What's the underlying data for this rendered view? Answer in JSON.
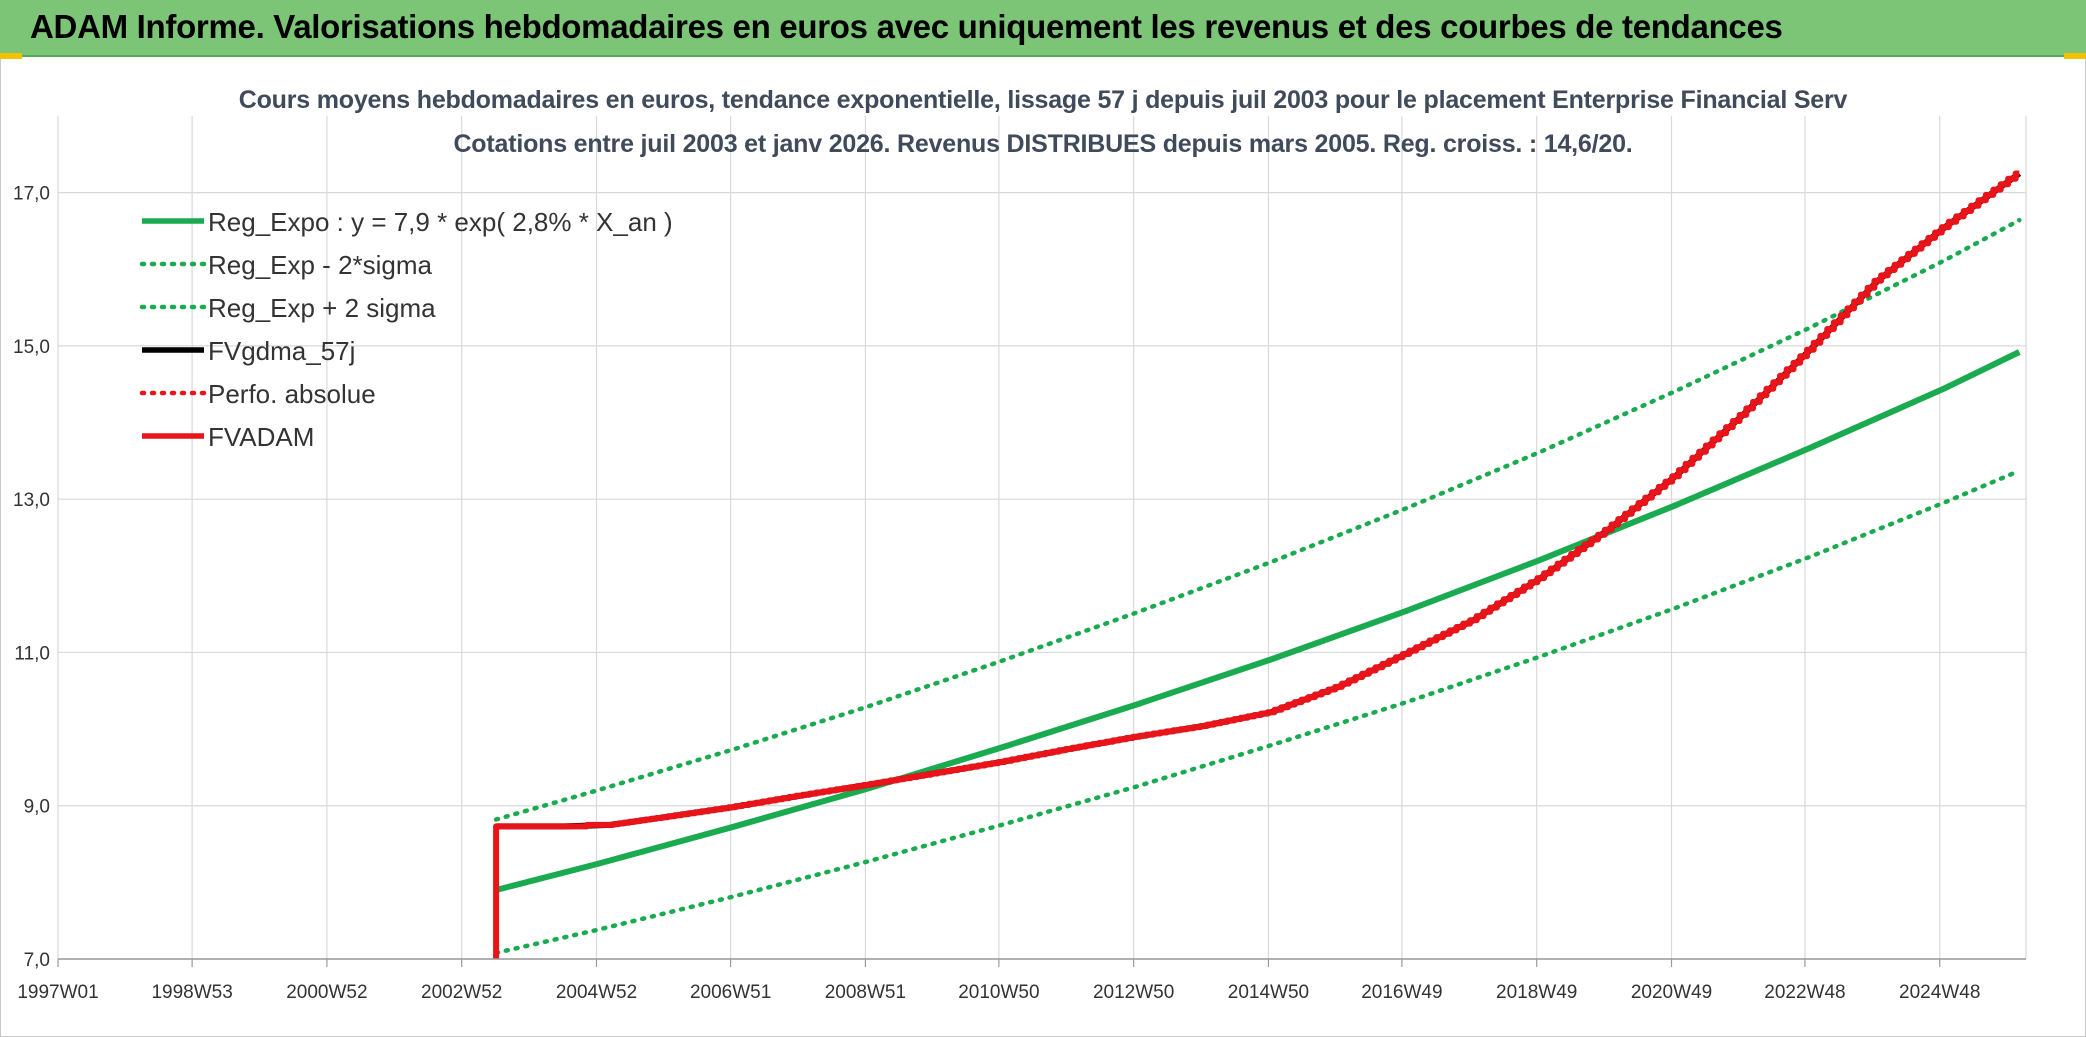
{
  "header": {
    "title": "ADAM Informe. Valorisations hebdomadaires en euros avec uniquement les revenus et des courbes de tendances"
  },
  "colors": {
    "header_bg": "#7cc576",
    "corner": "#f2c200",
    "green": "#1aaa50",
    "red": "#e8141a",
    "black": "#000000",
    "grid": "#d9d9d9"
  },
  "chart_data": {
    "type": "line",
    "title": "Cours moyens hebdomadaires en euros, tendance exponentielle, lissage 57 j depuis juil 2003 pour le placement Enterprise Financial Serv",
    "subtitle": "Cotations entre juil 2003 et janv 2026. Revenus DISTRIBUES depuis mars 2005. Reg. croiss. : 14,6/20.",
    "xlabel": "",
    "ylabel": "",
    "xlim": [
      1997.0,
      2026.2
    ],
    "ylim": [
      7.0,
      18.0
    ],
    "yticks": [
      7.0,
      9.0,
      11.0,
      13.0,
      15.0,
      17.0
    ],
    "ytick_labels": [
      "7,0",
      "9,0",
      "11,0",
      "13,0",
      "15,0",
      "17,0"
    ],
    "xticks": [
      1997.0,
      1998.99,
      2000.99,
      2002.99,
      2004.99,
      2006.98,
      2008.98,
      2010.96,
      2012.96,
      2014.96,
      2016.94,
      2018.94,
      2020.94,
      2022.92,
      2024.92
    ],
    "xtick_labels": [
      "1997W01",
      "1998W53",
      "2000W52",
      "2002W52",
      "2004W52",
      "2006W51",
      "2008W51",
      "2010W50",
      "2012W50",
      "2014W50",
      "2016W49",
      "2018W49",
      "2020W49",
      "2022W48",
      "2024W48"
    ],
    "grid": "vertical-and-horizontal",
    "legend_position": "top-left",
    "series": [
      {
        "name": "Reg_Expo : y = 7,9 * exp( 2,8% *  X_an )",
        "style": "solid",
        "color": "#1aaa50",
        "x": [
          2003.5,
          2005,
          2007,
          2009,
          2011,
          2013,
          2015,
          2017,
          2019,
          2021,
          2023,
          2025,
          2026.1
        ],
        "values": [
          7.9,
          8.24,
          8.72,
          9.22,
          9.76,
          10.32,
          10.91,
          11.54,
          12.21,
          12.92,
          13.67,
          14.45,
          14.92
        ]
      },
      {
        "name": "Reg_Exp - 2*sigma",
        "style": "dotted",
        "color": "#1aaa50",
        "x": [
          2003.5,
          2005,
          2007,
          2009,
          2011,
          2013,
          2015,
          2017,
          2019,
          2021,
          2023,
          2025,
          2026.1
        ],
        "values": [
          7.08,
          7.38,
          7.81,
          8.27,
          8.75,
          9.25,
          9.79,
          10.35,
          10.95,
          11.58,
          12.25,
          12.96,
          13.37
        ]
      },
      {
        "name": "Reg_Exp + 2 sigma",
        "style": "dotted",
        "color": "#1aaa50",
        "x": [
          2003.5,
          2005,
          2007,
          2009,
          2011,
          2013,
          2015,
          2017,
          2019,
          2021,
          2023,
          2025,
          2026.1
        ],
        "values": [
          8.82,
          9.2,
          9.73,
          10.29,
          10.89,
          11.52,
          12.18,
          12.88,
          13.62,
          14.41,
          15.24,
          16.12,
          16.64
        ]
      },
      {
        "name": "FVgdma_57j",
        "style": "solid",
        "color": "#000000",
        "x": [
          2003.5,
          2004.5,
          2005.2,
          2006,
          2007,
          2008,
          2009,
          2010,
          2011,
          2012,
          2013,
          2014,
          2015,
          2016,
          2017,
          2018,
          2019,
          2020,
          2021,
          2022,
          2023,
          2024,
          2025,
          2026.1
        ],
        "values": [
          8.73,
          8.73,
          8.75,
          8.85,
          8.98,
          9.13,
          9.27,
          9.42,
          9.57,
          9.74,
          9.9,
          10.04,
          10.22,
          10.55,
          10.98,
          11.42,
          11.97,
          12.6,
          13.3,
          14.1,
          14.95,
          15.85,
          16.55,
          17.25
        ]
      },
      {
        "name": "Perfo. absolue",
        "style": "dotted",
        "color": "#e8141a",
        "x": [
          2003.5,
          2004.5,
          2005.2,
          2006,
          2007,
          2008,
          2009,
          2010,
          2011,
          2012,
          2013,
          2014,
          2015,
          2016,
          2017,
          2018,
          2019,
          2020,
          2021,
          2022,
          2023,
          2024,
          2025,
          2026.1
        ],
        "values": [
          8.73,
          8.73,
          8.75,
          8.85,
          8.98,
          9.13,
          9.27,
          9.42,
          9.57,
          9.74,
          9.9,
          10.04,
          10.22,
          10.55,
          10.98,
          11.42,
          11.97,
          12.6,
          13.3,
          14.1,
          14.95,
          15.85,
          16.55,
          17.25
        ]
      },
      {
        "name": "FVADAM",
        "style": "solid-thick",
        "color": "#e8141a",
        "x": [
          2003.5,
          2003.5,
          2004.5,
          2005.2,
          2006,
          2007,
          2008,
          2009,
          2010,
          2011,
          2012,
          2013,
          2014,
          2015,
          2016,
          2017,
          2018,
          2019,
          2020,
          2021,
          2022,
          2023,
          2024,
          2025,
          2026.1
        ],
        "values": [
          7.0,
          8.73,
          8.73,
          8.75,
          8.85,
          8.98,
          9.13,
          9.27,
          9.42,
          9.57,
          9.74,
          9.9,
          10.04,
          10.22,
          10.55,
          10.98,
          11.42,
          11.97,
          12.6,
          13.3,
          14.1,
          14.95,
          15.85,
          16.55,
          17.25
        ]
      }
    ]
  }
}
